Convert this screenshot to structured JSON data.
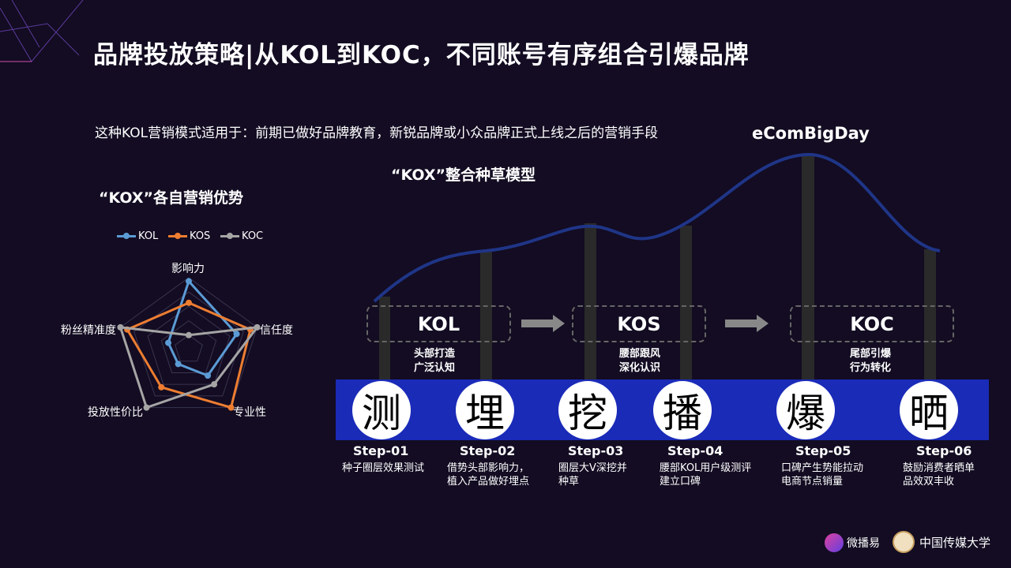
{
  "title": "品牌投放策略|从KOL到KOC，不同账号有序组合引爆品牌",
  "subtitle": "这种KOL营销模式适用于：前期已做好品牌教育，新锐品牌或小众品牌正式上线之后的营销手段",
  "peak_label": "eComBigDay",
  "model_title": "“KOX”整合种草模型",
  "stages": [
    {
      "label": "KOL",
      "note1": "头部打造",
      "note2": "广泛认知"
    },
    {
      "label": "KOS",
      "note1": "腰部跟风",
      "note2": "深化认识"
    },
    {
      "label": "KOC",
      "note1": "尾部引爆",
      "note2": "行为转化"
    }
  ],
  "steps": [
    {
      "char": "测",
      "step": "Step-01",
      "desc1": "种子圈层效果测试",
      "desc2": ""
    },
    {
      "char": "埋",
      "step": "Step-02",
      "desc1": "借势头部影响力，",
      "desc2": "植入产品做好埋点"
    },
    {
      "char": "挖",
      "step": "Step-03",
      "desc1": "圈层大V深挖并",
      "desc2": "种草"
    },
    {
      "char": "播",
      "step": "Step-04",
      "desc1": "腰部KOL用户级测评",
      "desc2": "建立口碑"
    },
    {
      "char": "爆",
      "step": "Step-05",
      "desc1": "口碑产生势能拉动",
      "desc2": "电商节点销量"
    },
    {
      "char": "晒",
      "step": "Step-06",
      "desc1": "鼓励消费者晒单",
      "desc2": "品效双丰收"
    }
  ],
  "colors": {
    "background": "#130c22",
    "band": "#1a2bb8",
    "curve": "#1f3587",
    "pillar": "#2a2a2a"
  },
  "logos": {
    "brand": "微播易",
    "university": "中国传媒大学"
  },
  "chart_data": {
    "type": "radar",
    "title": "“KOX”各自营销优势",
    "axes": [
      "影响力",
      "信任度",
      "专业性",
      "投放性价比",
      "粉丝精准度"
    ],
    "max": 100,
    "legend_position": "top",
    "series": [
      {
        "name": "KOL",
        "color": "#5b9bd5",
        "values": [
          95,
          70,
          45,
          25,
          30
        ]
      },
      {
        "name": "KOS",
        "color": "#ed7d31",
        "values": [
          65,
          90,
          100,
          65,
          90
        ]
      },
      {
        "name": "KOC",
        "color": "#a5a5a5",
        "values": [
          20,
          100,
          60,
          100,
          100
        ]
      }
    ]
  }
}
